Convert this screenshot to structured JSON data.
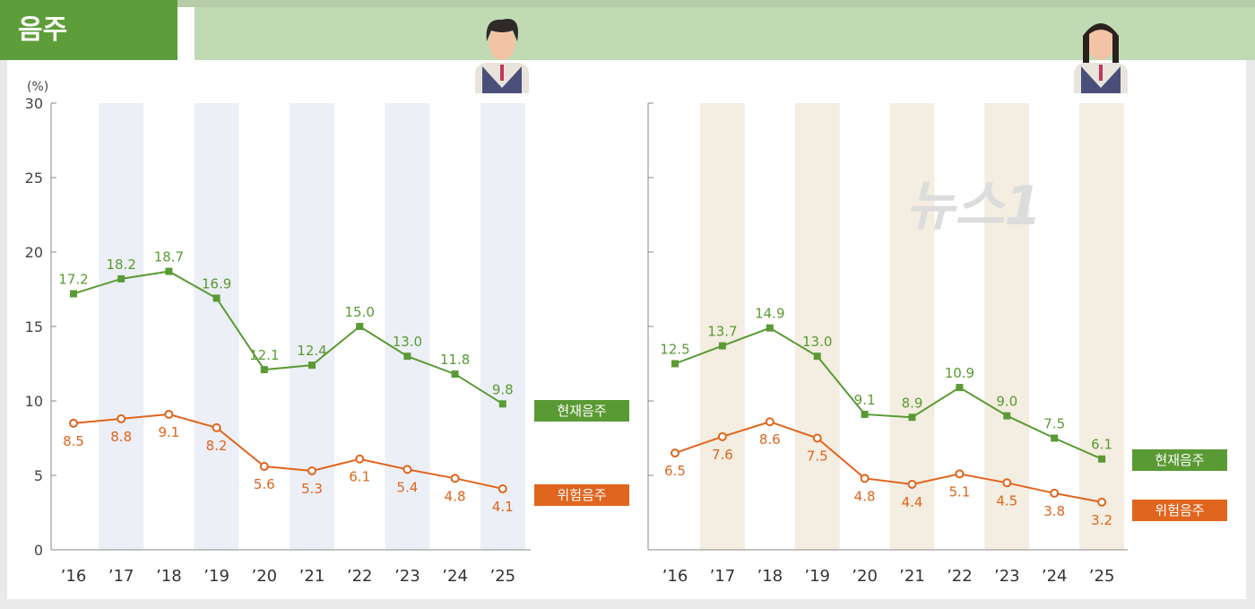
{
  "header": {
    "title": "음주"
  },
  "colors": {
    "current": "#5a9a34",
    "risky": "#e0651e",
    "band_male": "#eceff5",
    "band_female": "#f4ede1",
    "title_bg": "#5e9e3a"
  },
  "icons": [
    "male-student-icon",
    "female-student-icon"
  ],
  "chart_data": [
    {
      "type": "line",
      "group": "male",
      "ylabel": "(%)",
      "ylim": [
        0,
        30
      ],
      "yticks": [
        0,
        5,
        10,
        15,
        20,
        25,
        30
      ],
      "categories": [
        "’16",
        "’17",
        "’18",
        "’19",
        "’20",
        "’21",
        "’22",
        "’23",
        "’24",
        "’25"
      ],
      "series": [
        {
          "name": "현재음주",
          "values": [
            17.2,
            18.2,
            18.7,
            16.9,
            12.1,
            12.4,
            15.0,
            13.0,
            11.8,
            9.8
          ]
        },
        {
          "name": "위험음주",
          "values": [
            8.5,
            8.8,
            9.1,
            8.2,
            5.6,
            5.3,
            6.1,
            5.4,
            4.8,
            4.1
          ]
        }
      ]
    },
    {
      "type": "line",
      "group": "female",
      "ylim": [
        0,
        30
      ],
      "categories": [
        "’16",
        "’17",
        "’18",
        "’19",
        "’20",
        "’21",
        "’22",
        "’23",
        "’24",
        "’25"
      ],
      "series": [
        {
          "name": "현재음주",
          "values": [
            12.5,
            13.7,
            14.9,
            13.0,
            9.1,
            8.9,
            10.9,
            9.0,
            7.5,
            6.1
          ]
        },
        {
          "name": "위험음주",
          "values": [
            6.5,
            7.6,
            8.6,
            7.5,
            4.8,
            4.4,
            5.1,
            4.5,
            3.8,
            3.2
          ]
        }
      ]
    }
  ],
  "watermark": "뉴스1"
}
